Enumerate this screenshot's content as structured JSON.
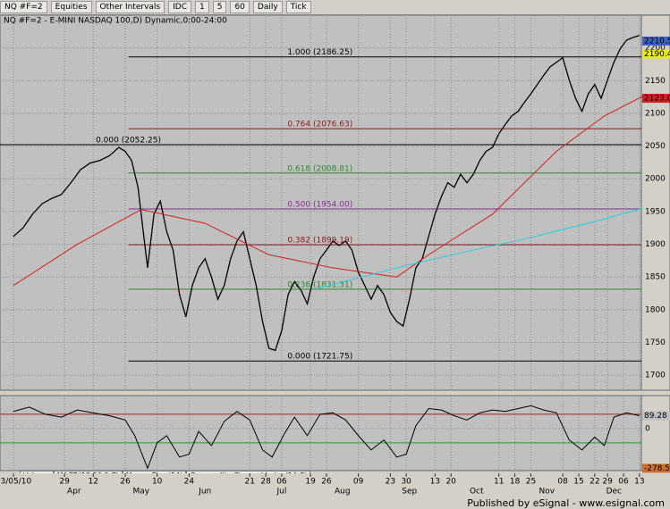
{
  "toolbar": [
    "NQ #F=2",
    "Equities",
    "Other Intervals",
    "IDC",
    "1",
    "5",
    "60",
    "Daily",
    "Tick"
  ],
  "tabs": [
    "Volume",
    "MACD(12,26,9,C)",
    "Money Flow(14)",
    "Commodity Channel Index(14,C)"
  ],
  "footer": "Published by eSignal - www.esignal.com",
  "chart_data": [
    {
      "type": "line",
      "title": "NQ #F=2 - E-MINI NASDAQ 100,D) Dynamic,0:00-24:00",
      "xlim": [
        -4.2,
        196.6
      ],
      "ylim": [
        1677,
        2250
      ],
      "yticks": [
        1700,
        1750,
        1800,
        1850,
        1900,
        1950,
        2000,
        2050,
        2100,
        2150,
        2200
      ],
      "xticks": [
        {
          "value": 0,
          "label": "03/05/10"
        },
        {
          "value": 16,
          "label": "29"
        },
        {
          "value": 25,
          "label": "12"
        },
        {
          "value": 35,
          "label": "26"
        },
        {
          "value": 45,
          "label": "10"
        },
        {
          "value": 55,
          "label": "24"
        },
        {
          "value": 74,
          "label": "21"
        },
        {
          "value": 79,
          "label": "28"
        },
        {
          "value": 84,
          "label": "06"
        },
        {
          "value": 93,
          "label": "19"
        },
        {
          "value": 98,
          "label": "26"
        },
        {
          "value": 108,
          "label": "09"
        },
        {
          "value": 118,
          "label": "23"
        },
        {
          "value": 123,
          "label": "30"
        },
        {
          "value": 132,
          "label": "13"
        },
        {
          "value": 137,
          "label": "20"
        },
        {
          "value": 152,
          "label": "11"
        },
        {
          "value": 157,
          "label": "18"
        },
        {
          "value": 162,
          "label": "25"
        },
        {
          "value": 172,
          "label": "08"
        },
        {
          "value": 177,
          "label": "15"
        },
        {
          "value": 182,
          "label": "22"
        },
        {
          "value": 186,
          "label": "29"
        },
        {
          "value": 191,
          "label": "06"
        },
        {
          "value": 196,
          "label": "13"
        }
      ],
      "month_ticks": [
        {
          "value": 19,
          "label": "Apr"
        },
        {
          "value": 40,
          "label": "May"
        },
        {
          "value": 60,
          "label": "Jun"
        },
        {
          "value": 84,
          "label": "Jul"
        },
        {
          "value": 103,
          "label": "Aug"
        },
        {
          "value": 124,
          "label": "Sep"
        },
        {
          "value": 145,
          "label": "Oct"
        },
        {
          "value": 167,
          "label": "Nov"
        },
        {
          "value": 188,
          "label": "Dec"
        }
      ],
      "grid": true,
      "series": [
        {
          "name": "Close",
          "color": "#000000",
          "x": [
            0,
            3,
            6,
            9,
            12,
            15,
            18,
            21,
            24,
            27,
            30,
            33,
            35,
            37,
            39,
            41,
            42,
            44,
            46,
            48,
            50,
            52,
            54,
            56,
            58,
            60,
            62,
            64,
            66,
            68,
            70,
            72,
            74,
            76,
            78,
            80,
            82,
            84,
            86,
            88,
            90,
            92,
            94,
            96,
            98,
            100,
            102,
            104,
            106,
            108,
            110,
            112,
            114,
            116,
            118,
            120,
            122,
            124,
            126,
            128,
            130,
            132,
            134,
            136,
            138,
            140,
            142,
            144,
            146,
            148,
            150,
            152,
            154,
            156,
            158,
            160,
            162,
            164,
            166,
            168,
            170,
            172,
            174,
            176,
            178,
            180,
            182,
            184,
            186,
            188,
            190,
            192,
            194,
            196
          ],
          "values": [
            1912,
            1925,
            1946,
            1962,
            1970,
            1976,
            1994,
            2014,
            2024,
            2028,
            2035,
            2048,
            2042,
            2028,
            1987,
            1905,
            1864,
            1946,
            1966,
            1919,
            1891,
            1823,
            1789,
            1837,
            1864,
            1878,
            1850,
            1816,
            1837,
            1878,
            1905,
            1919,
            1878,
            1837,
            1782,
            1741,
            1738,
            1768,
            1823,
            1843,
            1830,
            1809,
            1850,
            1878,
            1891,
            1905,
            1898,
            1905,
            1891,
            1857,
            1837,
            1816,
            1837,
            1823,
            1796,
            1782,
            1775,
            1816,
            1864,
            1878,
            1912,
            1946,
            1973,
            1994,
            1987,
            2007,
            1994,
            2007,
            2028,
            2042,
            2048,
            2069,
            2083,
            2096,
            2103,
            2117,
            2130,
            2144,
            2158,
            2171,
            2178,
            2185,
            2151,
            2123,
            2103,
            2130,
            2144,
            2123,
            2151,
            2178,
            2199,
            2212,
            2216,
            2219
          ]
        },
        {
          "name": "MA red",
          "color": "#d02020",
          "x": [
            0,
            20,
            40,
            60,
            80,
            100,
            120,
            130,
            150,
            170,
            185,
            197
          ],
          "values": [
            1837,
            1900,
            1953,
            1932,
            1884,
            1864,
            1850,
            1884,
            1946,
            2042,
            2096,
            2126
          ]
        },
        {
          "name": "MA cyan",
          "color": "#20d0e0",
          "x": [
            95,
            120,
            140,
            160,
            180,
            197
          ],
          "values": [
            1832,
            1864,
            1887,
            1908,
            1932,
            1955
          ]
        }
      ],
      "levels": [
        {
          "label": "1.000 (2186.25)",
          "value": 2186.25,
          "color": "#000000"
        },
        {
          "label": "0.764 (2076.63)",
          "value": 2076.63,
          "color": "#8b1a1a"
        },
        {
          "label": "0.618 (2008.81)",
          "value": 2008.81,
          "color": "#2a8a2a"
        },
        {
          "label": "0.500 (1954.00)",
          "value": 1954.0,
          "color": "#8a2a9a"
        },
        {
          "label": "0.382 (1899.19)",
          "value": 1899.19,
          "color": "#8b1a1a"
        },
        {
          "label": "0.236 (1831.31)",
          "value": 1831.31,
          "color": "#2a8a2a"
        },
        {
          "label": "0.000 (1721.75)",
          "value": 1721.75,
          "color": "#000000"
        },
        {
          "label": "0.000 (2052.25)",
          "value": 2052.25,
          "color": "#000000"
        }
      ],
      "markers": [
        {
          "value": 2210.5,
          "label": "2210.50",
          "color": "#3a5fd0"
        },
        {
          "value": 2190.41,
          "label": "2190.41",
          "color": "#e8e830"
        },
        {
          "value": 2123.04,
          "label": "2123.04",
          "color": "#d02020"
        }
      ]
    },
    {
      "type": "line",
      "xlim": [
        -4.2,
        196.6
      ],
      "ylim": [
        -295,
        231
      ],
      "yticks": [
        0
      ],
      "levels_lines": [
        100,
        -100
      ],
      "series": [
        {
          "name": "Commodity Channel Index(14,C)",
          "color": "#000000",
          "x": [
            0,
            5,
            10,
            15,
            20,
            25,
            30,
            35,
            38,
            42,
            45,
            48,
            52,
            55,
            58,
            62,
            66,
            70,
            74,
            78,
            81,
            85,
            88,
            92,
            96,
            100,
            104,
            108,
            112,
            116,
            120,
            123,
            126,
            130,
            134,
            138,
            142,
            146,
            150,
            154,
            158,
            162,
            166,
            170,
            174,
            178,
            182,
            185,
            188,
            192,
            196
          ],
          "values": [
            120,
            150,
            100,
            80,
            130,
            110,
            90,
            60,
            -50,
            -278.52,
            -100,
            -50,
            -200,
            -180,
            -20,
            -120,
            50,
            120,
            60,
            -150,
            -200,
            -30,
            80,
            -50,
            100,
            110,
            60,
            -50,
            -150,
            -80,
            -200,
            -180,
            20,
            140,
            130,
            90,
            60,
            110,
            130,
            120,
            140,
            160,
            130,
            110,
            -80,
            -150,
            -60,
            -120,
            80,
            110,
            89.28
          ]
        }
      ],
      "markers": [
        {
          "value": 89.28,
          "label": "89.28",
          "color": "#c0c0c0"
        },
        {
          "value": -278.52,
          "label": "-278.52",
          "color": "#d07030"
        }
      ]
    }
  ]
}
